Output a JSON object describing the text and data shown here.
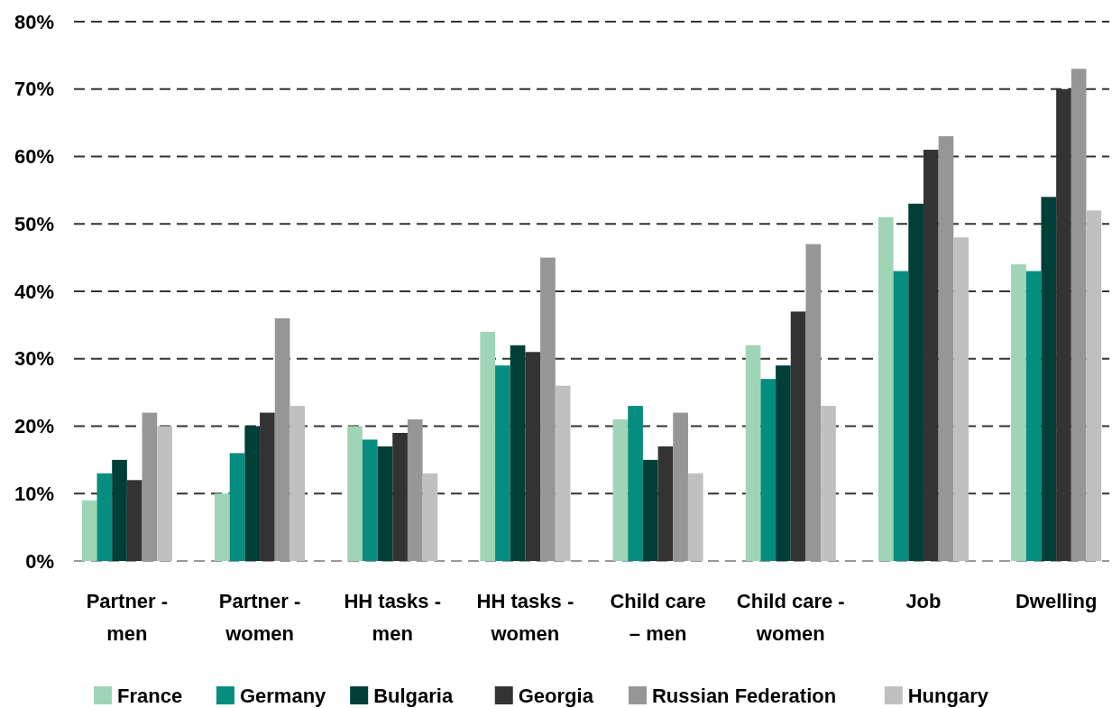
{
  "chart_data": {
    "type": "bar",
    "categories": [
      "Partner - men",
      "Partner - women",
      "HH tasks - men",
      "HH tasks - women",
      "Child care – men",
      "Child care - women",
      "Job",
      "Dwelling"
    ],
    "series": [
      {
        "name": "France",
        "color": "#9fd5b6",
        "values": [
          9,
          10,
          20,
          34,
          21,
          32,
          51,
          44
        ]
      },
      {
        "name": "Germany",
        "color": "#058d7f",
        "values": [
          13,
          16,
          18,
          29,
          23,
          27,
          43,
          43
        ]
      },
      {
        "name": "Bulgaria",
        "color": "#003f37",
        "values": [
          15,
          20,
          17,
          32,
          15,
          29,
          53,
          54
        ]
      },
      {
        "name": "Georgia",
        "color": "#333333",
        "values": [
          12,
          22,
          19,
          31,
          17,
          37,
          61,
          70
        ]
      },
      {
        "name": "Russian Federation",
        "color": "#969696",
        "values": [
          22,
          36,
          21,
          45,
          22,
          47,
          63,
          73
        ]
      },
      {
        "name": "Hungary",
        "color": "#c0c0c0",
        "values": [
          20,
          23,
          13,
          26,
          13,
          23,
          48,
          52
        ]
      }
    ],
    "ylim": [
      0,
      80
    ],
    "yticks": [
      {
        "value": 0,
        "label": "0%"
      },
      {
        "value": 10,
        "label": "10%"
      },
      {
        "value": 20,
        "label": "20%"
      },
      {
        "value": 30,
        "label": "30%"
      },
      {
        "value": 40,
        "label": "40%"
      },
      {
        "value": 50,
        "label": "50%"
      },
      {
        "value": 60,
        "label": "60%"
      },
      {
        "value": 70,
        "label": "70%"
      },
      {
        "value": 80,
        "label": "80%"
      }
    ],
    "grid": "y",
    "legend": "bottom"
  }
}
